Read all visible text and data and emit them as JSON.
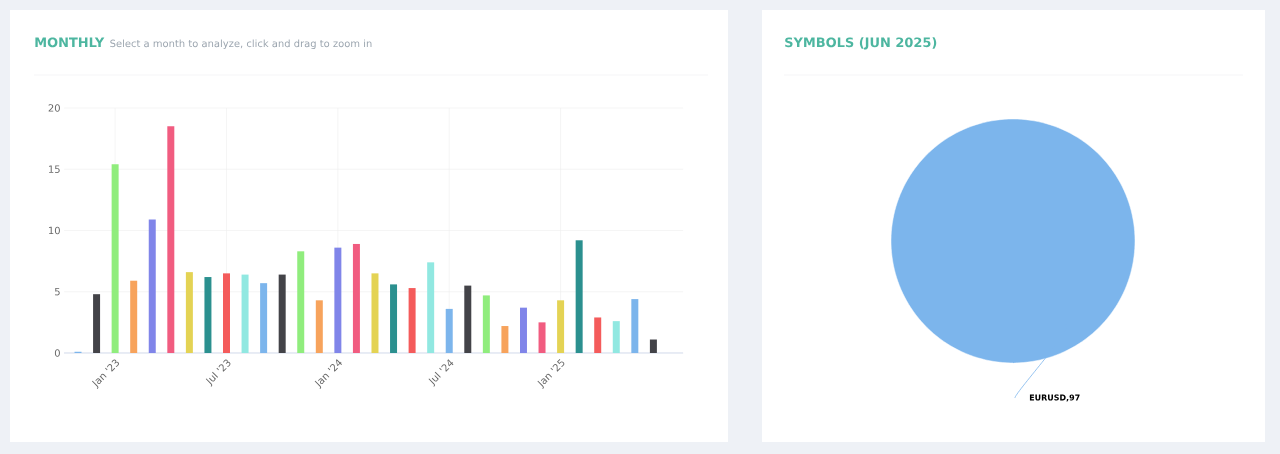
{
  "chart_data": [
    {
      "type": "bar",
      "title": "MONTHLY",
      "subtitle": "Select a month to analyze, click and drag to zoom in",
      "categories": [
        null,
        null,
        "Jan '23",
        null,
        null,
        null,
        null,
        null,
        "Jul '23",
        null,
        null,
        null,
        null,
        null,
        "Jan '24",
        null,
        null,
        null,
        null,
        null,
        "Jul '24",
        null,
        null,
        null,
        null,
        null,
        "Jan '25",
        null,
        null,
        null,
        null,
        null
      ],
      "values": [
        0.1,
        4.8,
        15.4,
        5.9,
        10.9,
        18.5,
        6.6,
        6.2,
        6.5,
        6.4,
        5.7,
        6.4,
        8.3,
        4.3,
        8.6,
        8.9,
        6.5,
        5.6,
        5.3,
        7.4,
        3.6,
        5.5,
        4.7,
        2.2,
        3.7,
        2.5,
        4.3,
        9.2,
        2.9,
        2.6,
        4.4,
        1.1
      ],
      "colors": [
        "#7cb5ec",
        "#434348",
        "#90ed7d",
        "#f7a35c",
        "#8085e9",
        "#f15c80",
        "#e4d354",
        "#2b908f",
        "#f45b5b",
        "#91e8e1",
        "#7cb5ec",
        "#434348",
        "#90ed7d",
        "#f7a35c",
        "#8085e9",
        "#f15c80",
        "#e4d354",
        "#2b908f",
        "#f45b5b",
        "#91e8e1",
        "#7cb5ec",
        "#434348",
        "#90ed7d",
        "#f7a35c",
        "#8085e9",
        "#f15c80",
        "#e4d354",
        "#2b908f",
        "#f45b5b",
        "#91e8e1",
        "#7cb5ec",
        "#434348"
      ],
      "ylim": [
        0,
        20
      ],
      "yticks": [
        0,
        5,
        10,
        15,
        20
      ],
      "grid": true
    },
    {
      "type": "pie",
      "title": "SYMBOLS (JUN 2025)",
      "categories": [
        "EURUSD"
      ],
      "values": [
        97
      ],
      "colors": [
        "#7cb5ec"
      ],
      "value_labels": [
        ",97"
      ]
    }
  ]
}
